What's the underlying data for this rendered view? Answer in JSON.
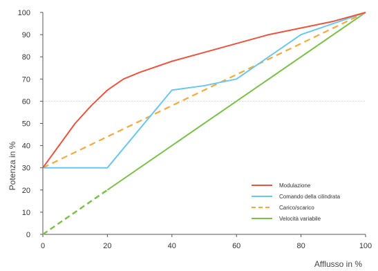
{
  "chart_data": {
    "type": "line",
    "xlabel": "Afflusso in %",
    "ylabel": "Potenza in %",
    "xlim": [
      0,
      100
    ],
    "ylim": [
      0,
      100
    ],
    "xticks": [
      0,
      20,
      40,
      60,
      80,
      100
    ],
    "yticks": [
      0,
      10,
      20,
      30,
      40,
      50,
      60,
      70,
      80,
      90,
      100
    ],
    "grid": "horizontal line at 60",
    "legend_position": "bottom-right",
    "series": [
      {
        "name": "Modulazione",
        "color": "#e8553f",
        "style": "solid",
        "x": [
          0,
          5,
          10,
          15,
          20,
          25,
          30,
          40,
          50,
          60,
          70,
          80,
          90,
          100
        ],
        "y": [
          30,
          40,
          50,
          58,
          65,
          70,
          73,
          78,
          82,
          86,
          90,
          93,
          96,
          100
        ]
      },
      {
        "name": "Comando della cilindrata",
        "color": "#69c6ee",
        "style": "solid",
        "x": [
          0,
          20,
          40,
          50,
          60,
          70,
          80,
          90,
          100
        ],
        "y": [
          30,
          30,
          65,
          67,
          70,
          80,
          90,
          95,
          100
        ]
      },
      {
        "name": "Carico/scarico",
        "color": "#f4a93c",
        "style": "dashed",
        "x": [
          0,
          100
        ],
        "y": [
          30,
          100
        ]
      },
      {
        "name": "Velocità variabile",
        "color": "#7cc04b",
        "style": "solid",
        "dashed_until": 20,
        "x": [
          0,
          100
        ],
        "y": [
          0,
          100
        ]
      }
    ]
  }
}
